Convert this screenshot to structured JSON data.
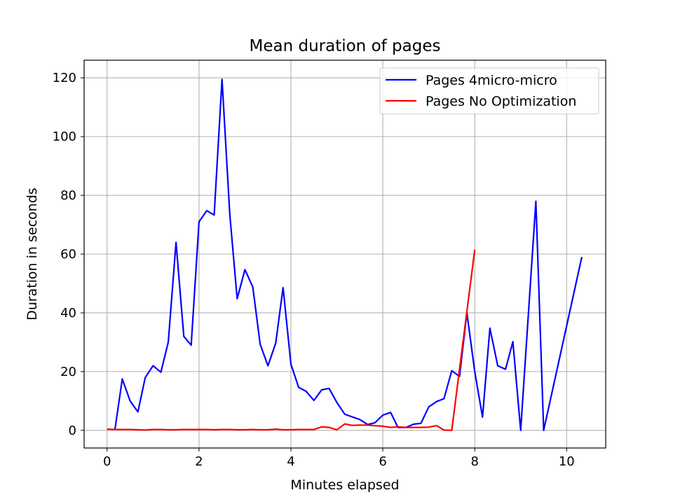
{
  "chart_data": {
    "type": "line",
    "title": "Mean duration of pages",
    "xlabel": "Minutes elapsed",
    "ylabel": "Duration in seconds",
    "xlim": [
      -0.5,
      10.85
    ],
    "ylim": [
      -6,
      126
    ],
    "xticks": [
      0,
      2,
      4,
      6,
      8,
      10
    ],
    "yticks": [
      0,
      20,
      40,
      60,
      80,
      100,
      120
    ],
    "grid": true,
    "legend": "top-right",
    "series": [
      {
        "name": "Pages 4micro-micro",
        "color": "#0000ff",
        "x": [
          0.17,
          0.33,
          0.5,
          0.67,
          0.83,
          1.0,
          1.17,
          1.33,
          1.5,
          1.67,
          1.83,
          2.0,
          2.17,
          2.33,
          2.5,
          2.67,
          2.83,
          3.0,
          3.17,
          3.33,
          3.5,
          3.67,
          3.83,
          4.0,
          4.17,
          4.33,
          4.5,
          4.67,
          4.83,
          5.0,
          5.17,
          5.33,
          5.5,
          5.67,
          5.83,
          6.0,
          6.17,
          6.33,
          6.5,
          6.67,
          6.83,
          7.0,
          7.17,
          7.33,
          7.5,
          7.67,
          7.83,
          8.0,
          8.17,
          8.33,
          8.5,
          8.67,
          8.83,
          9.0,
          9.33,
          9.5,
          10.33
        ],
        "y": [
          0.2,
          17.5,
          10.0,
          6.3,
          18.0,
          22.0,
          19.8,
          30.0,
          64.0,
          32.0,
          29.0,
          71.0,
          74.8,
          73.3,
          119.5,
          73.5,
          44.8,
          54.7,
          48.8,
          29.3,
          22.0,
          29.7,
          48.6,
          22.5,
          14.6,
          13.3,
          10.2,
          13.8,
          14.3,
          9.5,
          5.5,
          4.6,
          3.7,
          2.0,
          2.6,
          5.2,
          6.1,
          1.0,
          1.0,
          2.1,
          2.4,
          8.0,
          9.8,
          10.8,
          20.3,
          18.4,
          40.0,
          20.0,
          4.5,
          34.8,
          22.0,
          20.8,
          30.2,
          0.0,
          78.0,
          0.0,
          59.0
        ]
      },
      {
        "name": "Pages No Optimization",
        "color": "#ff0000",
        "x": [
          0.0,
          0.17,
          0.33,
          0.5,
          0.67,
          0.83,
          1.0,
          1.17,
          1.33,
          1.5,
          1.67,
          1.83,
          2.0,
          2.17,
          2.33,
          2.5,
          2.67,
          2.83,
          3.0,
          3.17,
          3.33,
          3.5,
          3.67,
          3.83,
          4.0,
          4.17,
          4.33,
          4.5,
          4.67,
          4.83,
          5.0,
          5.17,
          5.33,
          5.5,
          5.67,
          5.83,
          6.0,
          6.17,
          6.33,
          6.5,
          6.67,
          6.83,
          7.0,
          7.17,
          7.33,
          7.5,
          8.0
        ],
        "y": [
          0.4,
          0.3,
          0.3,
          0.3,
          0.2,
          0.1,
          0.3,
          0.3,
          0.2,
          0.2,
          0.3,
          0.3,
          0.3,
          0.3,
          0.2,
          0.3,
          0.3,
          0.2,
          0.2,
          0.3,
          0.2,
          0.2,
          0.4,
          0.2,
          0.2,
          0.3,
          0.3,
          0.3,
          1.2,
          1.0,
          0.2,
          2.2,
          1.7,
          1.8,
          1.8,
          1.6,
          1.4,
          1.0,
          1.2,
          1.0,
          1.0,
          1.0,
          1.1,
          1.6,
          0.1,
          0.0,
          61.5
        ]
      }
    ]
  }
}
